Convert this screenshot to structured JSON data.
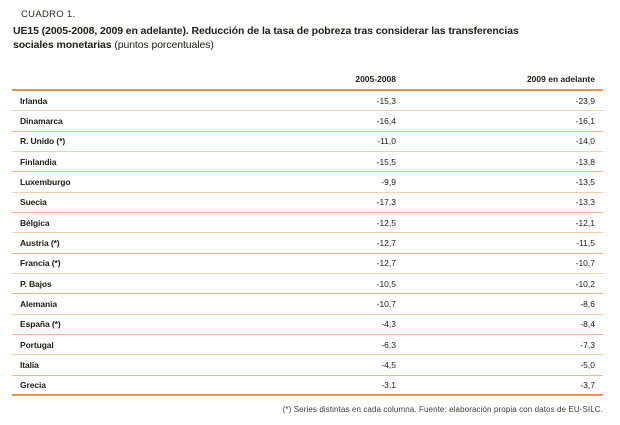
{
  "colors": {
    "thick_rule": "#e8935a",
    "row_divider": "#f2b489",
    "text": "#1d1d1b"
  },
  "header": {
    "kicker": "CUADRO 1.",
    "title_bold": "UE15 (2005-2008, 2009 en adelante). Reducción de la tasa de pobreza tras considerar las transferencias sociales monetarias",
    "title_suffix": " (puntos porcentuales)"
  },
  "table": {
    "col1_header": "2005-2008",
    "col2_header": "2009 en adelante",
    "rows": [
      {
        "country": "Irlanda",
        "v1": "-15,3",
        "v2": "-23,9"
      },
      {
        "country": "Dinamarca",
        "v1": "-16,4",
        "v2": "-16,1"
      },
      {
        "country": "R. Unido (*)",
        "v1": "-11,0",
        "v2": "-14,0"
      },
      {
        "country": "Finlandia",
        "v1": "-15,5",
        "v2": "-13,8"
      },
      {
        "country": "Luxemburgo",
        "v1": "-9,9",
        "v2": "-13,5"
      },
      {
        "country": "Suecia",
        "v1": "-17,3",
        "v2": "-13,3"
      },
      {
        "country": "Bélgica",
        "v1": "-12,5",
        "v2": "-12,1"
      },
      {
        "country": "Austria (*)",
        "v1": "-12,7",
        "v2": "-11,5"
      },
      {
        "country": "Francia (*)",
        "v1": "-12,7",
        "v2": "-10,7"
      },
      {
        "country": "P. Bajos",
        "v1": "-10,5",
        "v2": "-10,2"
      },
      {
        "country": "Alemania",
        "v1": "-10,7",
        "v2": "-8,6"
      },
      {
        "country": "España (*)",
        "v1": "-4,3",
        "v2": "-8,4"
      },
      {
        "country": "Portugal",
        "v1": "-6,3",
        "v2": "-7,3"
      },
      {
        "country": "Italia",
        "v1": "-4,5",
        "v2": "-5,0"
      },
      {
        "country": "Grecia",
        "v1": "-3,1",
        "v2": "-3,7"
      }
    ]
  },
  "footnote": "(*) Series distintas en cada columna. Fuente: elaboración propia con datos de EU-SILC."
}
